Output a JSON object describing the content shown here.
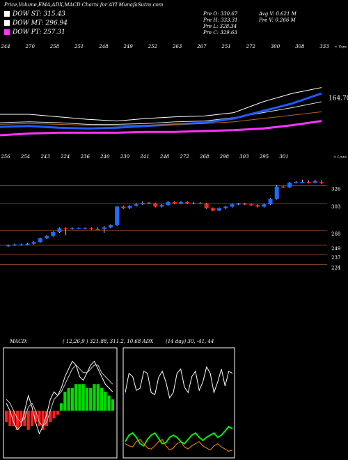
{
  "header": {
    "title": "Price,Volume,EMA,ADX,MACD Charts for AYI MunafaSutra.com",
    "legend": [
      {
        "text": "DOW ST: 315.43",
        "color": "#ffffff"
      },
      {
        "text": "DOW MT: 296.94",
        "color": "#ffffff"
      },
      {
        "text": "DOW PT: 257.31",
        "color": "#ff33ff"
      }
    ],
    "stats_left": [
      "Pre  O: 330.67",
      "Pre  H: 333.31",
      "Pre  L: 328.34",
      "Pre  C: 329.63"
    ],
    "stats_right": [
      "Avg V: 0.621 M",
      "Pre  V: 0.266  M"
    ]
  },
  "chart_data": [
    {
      "type": "line",
      "name": "ema-panel",
      "ylim": [
        0,
        100
      ],
      "label": "164.70",
      "tops": [
        "244",
        "270",
        "258",
        "251",
        "248",
        "249",
        "252",
        "263",
        "267",
        "251",
        "272",
        "300",
        "308",
        "333"
      ],
      "tops_caption": "< Tops",
      "series": [
        {
          "name": "DOW ST",
          "color": "#ffffff",
          "values": [
            30,
            30,
            27,
            24,
            22,
            25,
            27,
            28,
            32,
            45,
            55,
            62
          ]
        },
        {
          "name": "DOW MT",
          "color": "#dddddd",
          "values": [
            20,
            21,
            20,
            18,
            18,
            19,
            21,
            22,
            26,
            32,
            38,
            45
          ]
        },
        {
          "name": "EMA",
          "color": "#1e5bff",
          "values": [
            15,
            16,
            14,
            13,
            14,
            16,
            18,
            20,
            25,
            34,
            43,
            55
          ]
        },
        {
          "name": "EMA long",
          "color": "#b5651d",
          "values": [
            18,
            19,
            18,
            17,
            16,
            17,
            18,
            19,
            21,
            25,
            29,
            33
          ]
        },
        {
          "name": "DOW PT",
          "color": "#ff33ff",
          "values": [
            5,
            7,
            8,
            8,
            8,
            9,
            9,
            10,
            11,
            13,
            17,
            22
          ]
        }
      ]
    },
    {
      "type": "candlestick",
      "name": "price-panel",
      "ylim": [
        210,
        350
      ],
      "yticks": [
        326,
        303,
        268,
        249,
        237,
        224
      ],
      "lows": [
        "256",
        "254",
        "243",
        "224",
        "236",
        "240",
        "230",
        "241",
        "248",
        "272",
        "268",
        "298",
        "303",
        "295",
        "301"
      ],
      "lows_caption": "< Lows",
      "open": [
        248,
        249,
        250,
        250,
        251,
        253,
        258,
        261,
        266,
        271,
        270,
        271,
        271,
        271,
        270,
        270,
        272,
        275,
        299,
        297,
        300,
        302,
        304,
        303,
        299,
        301,
        305,
        303,
        305,
        303,
        304,
        303,
        297,
        294,
        297,
        299,
        302,
        303,
        302,
        301,
        299,
        302,
        309,
        325,
        324,
        330,
        331,
        331,
        330,
        330.67
      ],
      "close": [
        249,
        250,
        250,
        251,
        253,
        258,
        261,
        266,
        271,
        270,
        271,
        271,
        271,
        270,
        270,
        272,
        275,
        299,
        297,
        300,
        302,
        304,
        303,
        299,
        301,
        305,
        303,
        305,
        303,
        304,
        303,
        297,
        294,
        297,
        299,
        302,
        303,
        302,
        301,
        299,
        302,
        309,
        325,
        324,
        330,
        331,
        331,
        330,
        332,
        329.63
      ],
      "high": [
        250,
        251,
        251,
        252,
        254,
        259,
        262,
        267,
        272,
        272,
        272,
        272,
        272,
        272,
        272,
        274,
        276,
        300,
        300,
        301,
        304,
        306,
        305,
        304,
        302,
        306,
        306,
        306,
        306,
        305,
        305,
        304,
        298,
        298,
        300,
        303,
        304,
        304,
        303,
        302,
        303,
        310,
        327,
        326,
        331,
        332,
        334,
        333,
        334,
        333.31
      ],
      "low": [
        247,
        248,
        249,
        249,
        250,
        252,
        257,
        260,
        265,
        262,
        269,
        270,
        270,
        269,
        269,
        265,
        271,
        274,
        296,
        296,
        299,
        301,
        302,
        298,
        298,
        300,
        302,
        302,
        302,
        302,
        302,
        296,
        293,
        293,
        296,
        298,
        301,
        301,
        300,
        298,
        298,
        301,
        308,
        323,
        323,
        329,
        330,
        329,
        329,
        328.34
      ]
    },
    {
      "type": "macd",
      "name": "macd-panel",
      "ylim": [
        -12,
        16
      ],
      "label": "MACD:",
      "params": "( 12,26,9 ) 321.88, 311.2, 10.68 ADX",
      "histogram": [
        -3,
        -4,
        -4,
        -5,
        -4,
        -4,
        -5,
        -4,
        -3,
        -4,
        -5,
        -4,
        -3,
        -2,
        -1,
        2,
        5,
        6,
        6,
        7,
        7,
        7,
        6,
        6,
        7,
        7,
        6,
        5,
        4,
        3
      ],
      "macd": [
        2,
        0,
        -3,
        -5,
        -4,
        0,
        4,
        1,
        -3,
        -6,
        -4,
        -1,
        3,
        5,
        4,
        6,
        9,
        11,
        13,
        12,
        9,
        8,
        10,
        12,
        13,
        11,
        9,
        7,
        6,
        5
      ],
      "signal": [
        3,
        2,
        0,
        -2,
        -3,
        -2,
        1,
        2,
        0,
        -3,
        -4,
        -3,
        0,
        3,
        4,
        5,
        7,
        9,
        11,
        12,
        11,
        10,
        10,
        11,
        12,
        12,
        10,
        9,
        8,
        7
      ]
    },
    {
      "type": "adx",
      "name": "adx-panel",
      "ylim": [
        0,
        100
      ],
      "params": "(14 day) 30, -41, 44",
      "series": [
        {
          "name": "DI+",
          "color": "#ffffff",
          "values": [
            60,
            78,
            75,
            62,
            64,
            80,
            78,
            60,
            58,
            74,
            80,
            70,
            55,
            60,
            78,
            82,
            65,
            60,
            75,
            80,
            62,
            70,
            84,
            78,
            60,
            70,
            82,
            66,
            80,
            78
          ]
        },
        {
          "name": "ADX",
          "color": "#00ee00",
          "values": [
            14,
            20,
            22,
            18,
            12,
            10,
            16,
            20,
            22,
            17,
            12,
            13,
            18,
            20,
            18,
            14,
            12,
            16,
            20,
            22,
            18,
            15,
            18,
            20,
            22,
            18,
            20,
            24,
            28,
            26
          ]
        },
        {
          "name": "DI-",
          "color": "#ff8c00",
          "values": [
            12,
            10,
            9,
            14,
            16,
            12,
            8,
            7,
            10,
            14,
            16,
            10,
            6,
            8,
            12,
            14,
            9,
            7,
            10,
            12,
            14,
            10,
            8,
            6,
            10,
            12,
            9,
            7,
            5,
            6
          ]
        }
      ]
    }
  ]
}
